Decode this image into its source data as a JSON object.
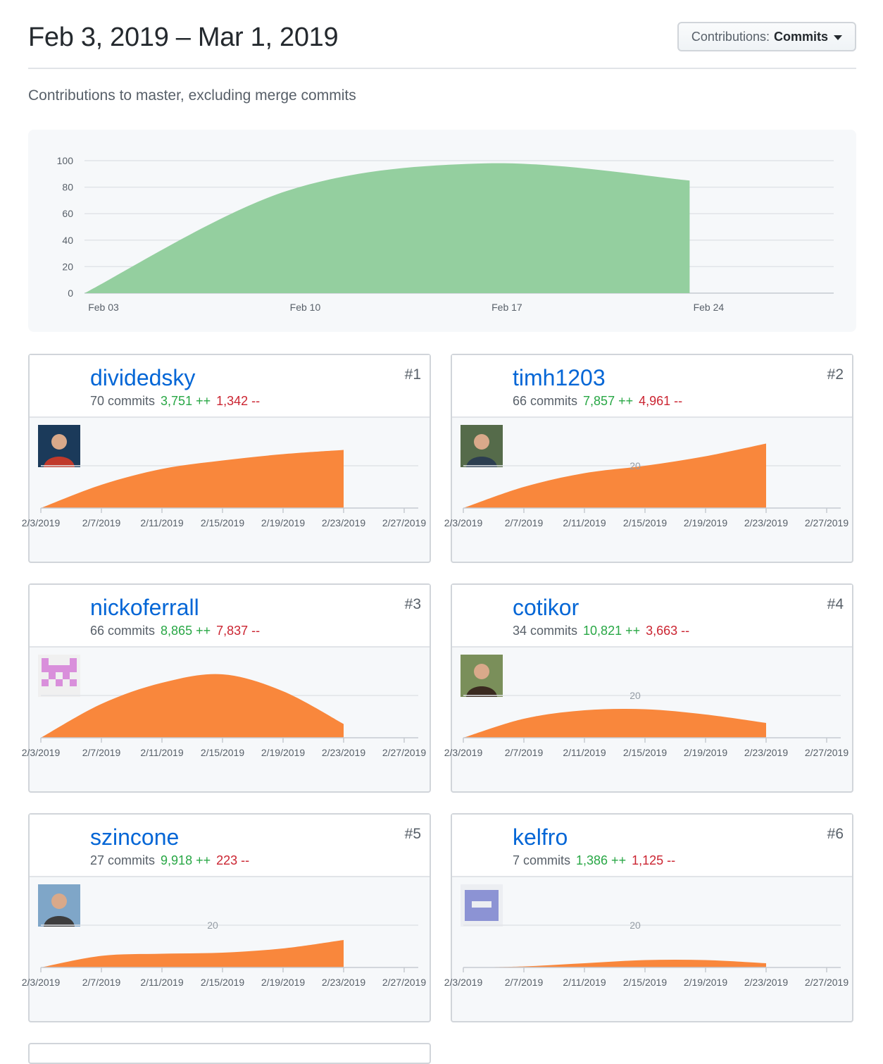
{
  "header": {
    "title": "Feb 3, 2019 – Mar 1, 2019",
    "dropdown_prefix": "Contributions:",
    "dropdown_value": "Commits"
  },
  "subtitle": "Contributions to master, excluding merge commits",
  "colors": {
    "main_area": "#94cf9f",
    "contributor_area": "#f9873c",
    "link": "#0366d6",
    "additions": "#28a745",
    "deletions": "#cb2431"
  },
  "chart_data": [
    {
      "type": "area",
      "title": "",
      "y_ticks": [
        "0",
        "20",
        "40",
        "60",
        "80",
        "100"
      ],
      "x_ticks": [
        "Feb 03",
        "Feb 10",
        "Feb 17",
        "Feb 24"
      ],
      "ylim": [
        0,
        100
      ],
      "x": [
        "2019-02-03",
        "2019-02-10",
        "2019-02-17",
        "2019-02-24"
      ],
      "series": [
        {
          "values": [
            0,
            77,
            98,
            85
          ]
        }
      ],
      "grid": true
    }
  ],
  "contributor_x_ticks": [
    "2/3/2019",
    "2/7/2019",
    "2/11/2019",
    "2/15/2019",
    "2/19/2019",
    "2/23/2019",
    "2/27/2019"
  ],
  "contributor_x_dates": [
    "2019-02-03",
    "2019-02-07",
    "2019-02-11",
    "2019-02-15",
    "2019-02-19",
    "2019-02-23",
    "2019-02-27"
  ],
  "contributors": [
    {
      "rank": "#1",
      "username": "dividedsky",
      "commits": "70 commits",
      "additions": "3,751 ++",
      "deletions": "1,342 --",
      "avatar_icon": "avatar-photo-icon",
      "grid_label": "",
      "chart_data": {
        "type": "area",
        "x": [
          "2019-02-03",
          "2019-02-07",
          "2019-02-11",
          "2019-02-15",
          "2019-02-19",
          "2019-02-23"
        ],
        "values": [
          0,
          11,
          18.5,
          22.5,
          25.5,
          27.5
        ]
      }
    },
    {
      "rank": "#2",
      "username": "timh1203",
      "commits": "66 commits",
      "additions": "7,857 ++",
      "deletions": "4,961 --",
      "avatar_icon": "avatar-photo-icon",
      "grid_label": "20",
      "chart_data": {
        "type": "area",
        "x": [
          "2019-02-03",
          "2019-02-07",
          "2019-02-11",
          "2019-02-15",
          "2019-02-19",
          "2019-02-23"
        ],
        "values": [
          0,
          10,
          16.5,
          20,
          24.5,
          30.5
        ]
      }
    },
    {
      "rank": "#3",
      "username": "nickoferrall",
      "commits": "66 commits",
      "additions": "8,865 ++",
      "deletions": "7,837 --",
      "avatar_icon": "identicon-icon",
      "grid_label": "",
      "chart_data": {
        "type": "area",
        "x": [
          "2019-02-03",
          "2019-02-07",
          "2019-02-11",
          "2019-02-15",
          "2019-02-19",
          "2019-02-23"
        ],
        "values": [
          0,
          16,
          26,
          30,
          22,
          6.5
        ]
      }
    },
    {
      "rank": "#4",
      "username": "cotikor",
      "commits": "34 commits",
      "additions": "10,821 ++",
      "deletions": "3,663 --",
      "avatar_icon": "avatar-photo-icon",
      "grid_label": "20",
      "chart_data": {
        "type": "area",
        "x": [
          "2019-02-03",
          "2019-02-07",
          "2019-02-11",
          "2019-02-15",
          "2019-02-19",
          "2019-02-23"
        ],
        "values": [
          0,
          9,
          13,
          13.5,
          11,
          7
        ]
      }
    },
    {
      "rank": "#5",
      "username": "szincone",
      "commits": "27 commits",
      "additions": "9,918 ++",
      "deletions": "223 --",
      "avatar_icon": "avatar-photo-icon",
      "grid_label": "20",
      "chart_data": {
        "type": "area",
        "x": [
          "2019-02-03",
          "2019-02-07",
          "2019-02-11",
          "2019-02-15",
          "2019-02-19",
          "2019-02-23"
        ],
        "values": [
          0,
          5.5,
          6.5,
          7,
          9,
          13
        ]
      }
    },
    {
      "rank": "#6",
      "username": "kelfro",
      "commits": "7 commits",
      "additions": "1,386 ++",
      "deletions": "1,125 --",
      "avatar_icon": "identicon-icon",
      "grid_label": "20",
      "chart_data": {
        "type": "area",
        "x": [
          "2019-02-03",
          "2019-02-07",
          "2019-02-11",
          "2019-02-15",
          "2019-02-19",
          "2019-02-23"
        ],
        "values": [
          0,
          0.5,
          2,
          3.5,
          3.5,
          2
        ]
      }
    }
  ]
}
